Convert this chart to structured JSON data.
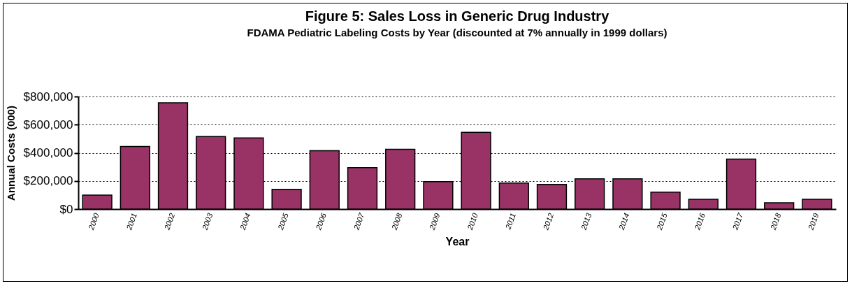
{
  "chart_data": {
    "type": "bar",
    "title": "Figure 5: Sales Loss in Generic Drug Industry",
    "subtitle": "FDAMA Pediatric Labeling Costs by Year (discounted at 7% annually in 1999 dollars)",
    "xlabel": "Year",
    "ylabel": "Annual Costs (000)",
    "categories": [
      "2000",
      "2001",
      "2002",
      "2003",
      "2004",
      "2005",
      "2006",
      "2007",
      "2008",
      "2009",
      "2010",
      "2011",
      "2012",
      "2013",
      "2014",
      "2015",
      "2016",
      "2017",
      "2018",
      "2019"
    ],
    "values": [
      100000,
      445000,
      755000,
      515000,
      505000,
      140000,
      415000,
      295000,
      425000,
      195000,
      545000,
      185000,
      175000,
      215000,
      215000,
      120000,
      70000,
      355000,
      45000,
      70000
    ],
    "color": "#993366",
    "ylim": [
      0,
      800000
    ],
    "yticks": [
      {
        "value": 0,
        "label": "$0"
      },
      {
        "value": 200000,
        "label": "$200,000"
      },
      {
        "value": 400000,
        "label": "$400,000"
      },
      {
        "value": 600000,
        "label": "$600,000"
      },
      {
        "value": 800000,
        "label": "$800,000"
      }
    ],
    "grid": "y"
  }
}
